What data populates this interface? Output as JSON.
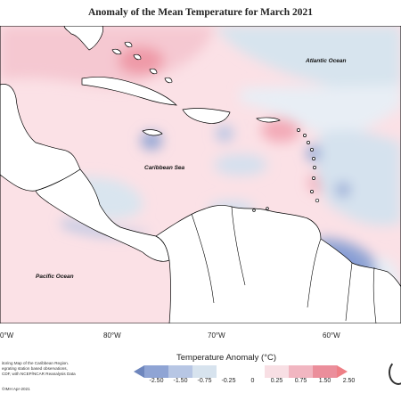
{
  "title": "Anomaly of the Mean Temperature for March 2021",
  "map": {
    "ocean_labels": {
      "atlantic": "Atlantic Ocean",
      "caribbean": "Caribbean Sea",
      "pacific": "Pacific Ocean"
    },
    "longitude_labels": [
      "0°W",
      "80°W",
      "70°W",
      "60°W"
    ]
  },
  "notes": {
    "lines": [
      "itoring Map of the Caribbean Region.",
      "egrating station based observations,",
      "CDF, with NCEP/NCAR Reanalysis Data"
    ],
    "credit": "©IMH Apr-2021"
  },
  "legend": {
    "title": "Temperature Anomaly (°C)",
    "ticks": [
      "-2.50",
      "-1.50",
      "-0.75",
      "-0.25",
      "0",
      "0.25",
      "0.75",
      "1.50",
      "2.50"
    ],
    "colors": [
      "#6e86bd",
      "#8fa4d4",
      "#b7c6e4",
      "#d7e3ee",
      "#ffffff",
      "#ffffff",
      "#f8dfe4",
      "#f1b6c1",
      "#eb8e9b",
      "#ee7f86"
    ]
  }
}
